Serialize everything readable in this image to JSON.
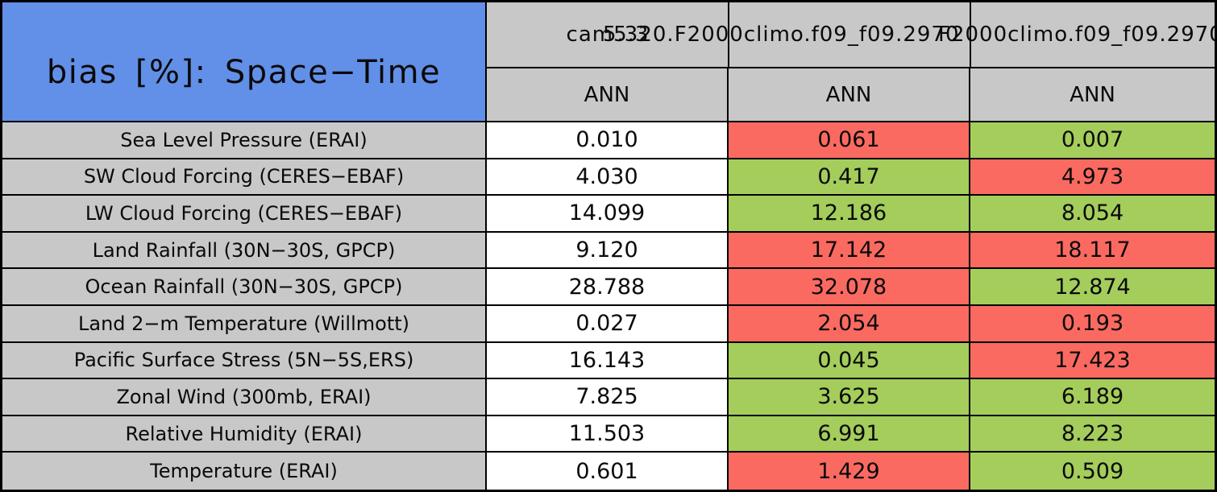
{
  "chart_data": {
    "type": "table",
    "title": "bias [%]: Space−Time",
    "column_headers": [
      {
        "case_name": "cam5.3",
        "season": "ANN"
      },
      {
        "case_name": "5.320.F2000climo.f09_f09.2970",
        "season": "ANN"
      },
      {
        "case_name": "F2000climo.f09_f09.2970",
        "season": "ANN"
      }
    ],
    "rows": [
      {
        "label": "Sea Level Pressure (ERAI)",
        "values": [
          "0.010",
          "0.061",
          "0.007"
        ],
        "cell_colors": [
          "white",
          "red",
          "green"
        ]
      },
      {
        "label": "SW Cloud Forcing (CERES−EBAF)",
        "values": [
          "4.030",
          "0.417",
          "4.973"
        ],
        "cell_colors": [
          "white",
          "green",
          "red"
        ]
      },
      {
        "label": "LW Cloud Forcing (CERES−EBAF)",
        "values": [
          "14.099",
          "12.186",
          "8.054"
        ],
        "cell_colors": [
          "white",
          "green",
          "green"
        ]
      },
      {
        "label": "Land Rainfall (30N−30S, GPCP)",
        "values": [
          "9.120",
          "17.142",
          "18.117"
        ],
        "cell_colors": [
          "white",
          "red",
          "red"
        ]
      },
      {
        "label": "Ocean Rainfall (30N−30S, GPCP)",
        "values": [
          "28.788",
          "32.078",
          "12.874"
        ],
        "cell_colors": [
          "white",
          "red",
          "green"
        ]
      },
      {
        "label": "Land 2−m Temperature (Willmott)",
        "values": [
          "0.027",
          "2.054",
          "0.193"
        ],
        "cell_colors": [
          "white",
          "red",
          "red"
        ]
      },
      {
        "label": "Pacific Surface Stress (5N−5S,ERS)",
        "values": [
          "16.143",
          "0.045",
          "17.423"
        ],
        "cell_colors": [
          "white",
          "green",
          "red"
        ]
      },
      {
        "label": "Zonal Wind (300mb, ERAI)",
        "values": [
          "7.825",
          "3.625",
          "6.189"
        ],
        "cell_colors": [
          "white",
          "green",
          "green"
        ]
      },
      {
        "label": "Relative Humidity (ERAI)",
        "values": [
          "11.503",
          "6.991",
          "8.223"
        ],
        "cell_colors": [
          "white",
          "green",
          "green"
        ]
      },
      {
        "label": "Temperature (ERAI)",
        "values": [
          "0.601",
          "1.429",
          "0.509"
        ],
        "cell_colors": [
          "white",
          "red",
          "green"
        ]
      }
    ],
    "colors": {
      "cell_white": "#ffffff",
      "cell_red": "#fa6a61",
      "cell_green": "#a4cd5c",
      "header_gray": "#c8c8c8",
      "title_blue": "#6290e8",
      "grid_line": "#000000"
    },
    "layout": {
      "grid": "on",
      "legend": "none"
    }
  }
}
